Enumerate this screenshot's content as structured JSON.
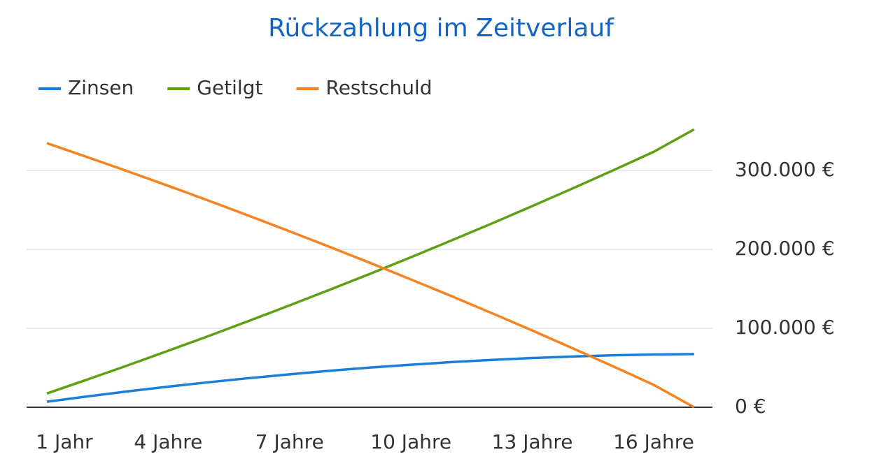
{
  "chart_data": {
    "type": "line",
    "title": "Rückzahlung im Zeitverlauf",
    "categories": [
      "1 Jahr",
      null,
      null,
      "4 Jahre",
      null,
      null,
      "7 Jahre",
      null,
      null,
      "10 Jahre",
      null,
      null,
      "13 Jahre",
      null,
      null,
      "16 Jahre",
      null
    ],
    "series": [
      {
        "name": "Zinsen",
        "color": "#1a7fd8",
        "values": [
          7000,
          13700,
          20100,
          26100,
          31700,
          36900,
          41700,
          46200,
          50300,
          53900,
          57200,
          60000,
          62400,
          64300,
          65800,
          66800,
          67400
        ]
      },
      {
        "name": "Getilgt",
        "color": "#5fa012",
        "values": [
          17400,
          35100,
          53100,
          71600,
          90300,
          109500,
          129100,
          149000,
          169300,
          190100,
          211300,
          232800,
          254900,
          277300,
          300200,
          323600,
          352000
        ]
      },
      {
        "name": "Restschuld",
        "color": "#f7821e",
        "values": [
          334600,
          316900,
          298900,
          280500,
          261700,
          242500,
          222900,
          203000,
          182700,
          161900,
          140800,
          119200,
          97200,
          74700,
          51800,
          28400,
          0
        ]
      }
    ],
    "ylim": [
      0,
      354000
    ],
    "yticks": [
      {
        "value": 0,
        "label": "0 €"
      },
      {
        "value": 100000,
        "label": "100.000 €"
      },
      {
        "value": 200000,
        "label": "200.000 €"
      },
      {
        "value": 300000,
        "label": "300.000 €"
      }
    ],
    "grid": true,
    "legend": "top"
  }
}
